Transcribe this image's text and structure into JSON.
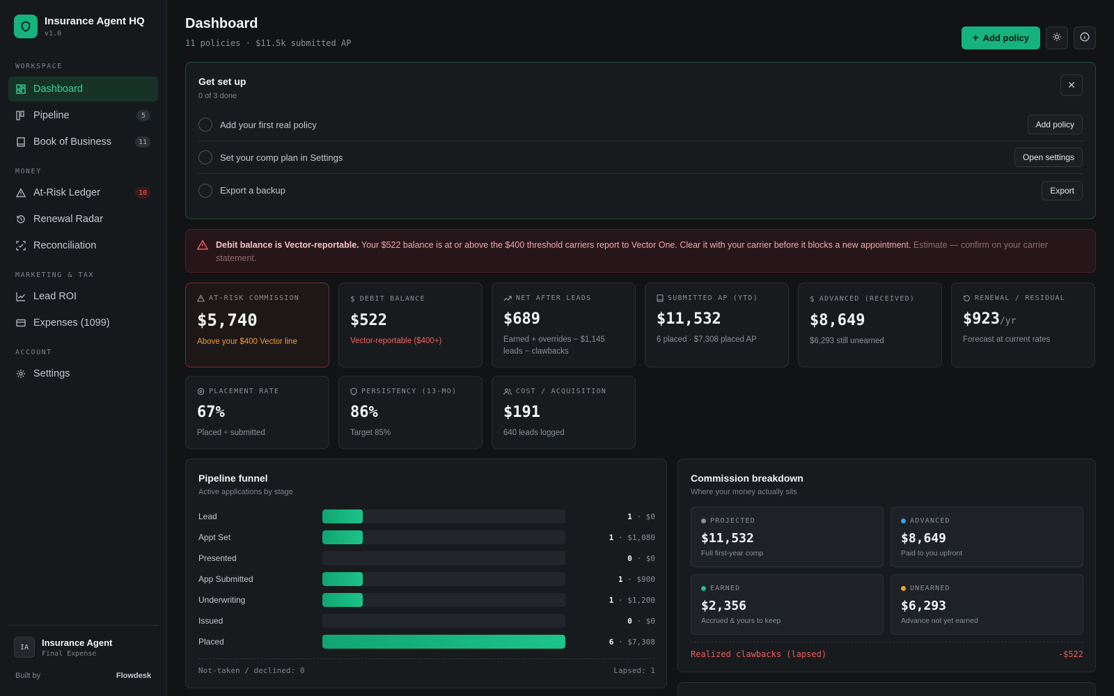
{
  "brand": {
    "name": "Insurance Agent HQ",
    "version": "v1.0",
    "logo_icon": "shield-icon"
  },
  "sidebar": {
    "sections": [
      {
        "label": "WORKSPACE",
        "items": [
          {
            "label": "Dashboard",
            "icon": "dashboard-icon",
            "active": true
          },
          {
            "label": "Pipeline",
            "icon": "kanban-icon",
            "badge": "5"
          },
          {
            "label": "Book of Business",
            "icon": "book-icon",
            "badge": "11"
          }
        ]
      },
      {
        "label": "MONEY",
        "items": [
          {
            "label": "At-Risk Ledger",
            "icon": "warning-icon",
            "badge": "10",
            "badge_color": "#ef5b5b"
          },
          {
            "label": "Renewal Radar",
            "icon": "history-icon"
          },
          {
            "label": "Reconciliation",
            "icon": "scan-icon"
          }
        ]
      },
      {
        "label": "MARKETING & TAX",
        "items": [
          {
            "label": "Lead ROI",
            "icon": "line-chart-icon"
          },
          {
            "label": "Expenses (1099)",
            "icon": "card-icon"
          }
        ]
      },
      {
        "label": "ACCOUNT",
        "items": [
          {
            "label": "Settings",
            "icon": "gear-icon"
          }
        ]
      }
    ],
    "profile": {
      "initials": "IA",
      "name": "Insurance Agent",
      "role": "Final Expense"
    },
    "built_by_label": "Built by",
    "built_by_name": "Flowdesk"
  },
  "header": {
    "title": "Dashboard",
    "subtitle": "11 policies · $11.5k submitted AP",
    "add_policy_label": "Add policy"
  },
  "setup": {
    "title": "Get set up",
    "progress": "0 of 3 done",
    "steps": [
      {
        "label": "Add your first real policy",
        "button": "Add policy"
      },
      {
        "label": "Set your comp plan in Settings",
        "button": "Open settings"
      },
      {
        "label": "Export a backup",
        "button": "Export"
      }
    ]
  },
  "alert": {
    "title": "Debit balance is Vector-reportable.",
    "body": "Your $522 balance is at or above the $400 threshold carriers report to Vector One. Clear it with your carrier before it blocks a new appointment.",
    "muted": "Estimate — confirm on your carrier statement.",
    "color": "#ef5b5b"
  },
  "stats": [
    {
      "label": "AT-RISK COMMISSION",
      "icon": "warning-icon",
      "value": "$5,740",
      "note": "Above your $400 Vector line",
      "tone": "orange",
      "danger": true
    },
    {
      "label": "DEBIT BALANCE",
      "icon": "dollar-icon",
      "value": "$522",
      "note": "Vector-reportable ($400+)",
      "tone": "red"
    },
    {
      "label": "NET AFTER LEADS",
      "icon": "trend-up-icon",
      "value": "$689",
      "note": "Earned + overrides − $1,145 leads − clawbacks"
    },
    {
      "label": "SUBMITTED AP (YTD)",
      "icon": "document-icon",
      "value": "$11,532",
      "note": "6 placed · $7,308 placed AP"
    },
    {
      "label": "ADVANCED (RECEIVED)",
      "icon": "dollar-icon",
      "value": "$8,649",
      "note": "$6,293 still unearned"
    },
    {
      "label": "RENEWAL / RESIDUAL",
      "icon": "refresh-icon",
      "value": "$923",
      "unit": "/yr",
      "note": "Forecast at current rates"
    },
    {
      "label": "PLACEMENT RATE",
      "icon": "target-icon",
      "value": "67%",
      "note": "Placed ÷ submitted"
    },
    {
      "label": "PERSISTENCY (13-MO)",
      "icon": "shield-icon",
      "value": "86%",
      "note": "Target 85%"
    },
    {
      "label": "COST / ACQUISITION",
      "icon": "users-icon",
      "value": "$191",
      "note": "640 leads logged"
    }
  ],
  "funnel": {
    "title": "Pipeline funnel",
    "subtitle": "Active applications by stage",
    "max_count": 6,
    "stages": [
      {
        "label": "Lead",
        "count": 1,
        "amount": "$0"
      },
      {
        "label": "Appt Set",
        "count": 1,
        "amount": "$1,080"
      },
      {
        "label": "Presented",
        "count": 0,
        "amount": "$0"
      },
      {
        "label": "App Submitted",
        "count": 1,
        "amount": "$900"
      },
      {
        "label": "Underwriting",
        "count": 1,
        "amount": "$1,200"
      },
      {
        "label": "Issued",
        "count": 0,
        "amount": "$0"
      },
      {
        "label": "Placed",
        "count": 6,
        "amount": "$7,308"
      }
    ],
    "not_taken": "Not-taken / declined: 0",
    "lapsed": "Lapsed: 1"
  },
  "commission": {
    "title": "Commission breakdown",
    "subtitle": "Where your money actually sits",
    "boxes": [
      {
        "label": "PROJECTED",
        "value": "$11,532",
        "note": "Full first-year comp",
        "dot": "#8a9096"
      },
      {
        "label": "ADVANCED",
        "value": "$8,649",
        "note": "Paid to you upfront",
        "dot": "#3aa0f0"
      },
      {
        "label": "EARNED",
        "value": "$2,356",
        "note": "Accrued & yours to keep",
        "dot": "#1cc48a"
      },
      {
        "label": "UNEARNED",
        "value": "$6,293",
        "note": "Advance not yet earned",
        "dot": "#f0a030"
      }
    ],
    "clawback_label": "Realized clawbacks (lapsed)",
    "clawback_value": "-$522"
  },
  "colors": {
    "accent": "#16b37e",
    "danger": "#ef5b5b",
    "warning": "#f0a030"
  }
}
